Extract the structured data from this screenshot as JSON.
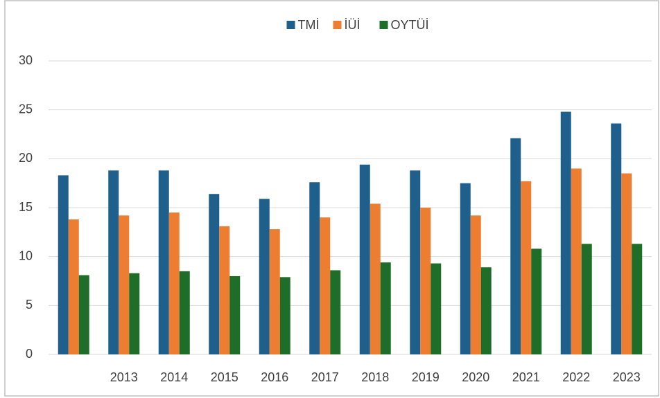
{
  "chart_data": {
    "type": "bar",
    "categories": [
      null,
      "2013",
      "2014",
      "2015",
      "2016",
      "2017",
      "2018",
      "2019",
      "2020",
      "2021",
      "2022",
      "2023"
    ],
    "series": [
      {
        "name": "TMİ",
        "color": "#1f5f8b",
        "values": [
          18.3,
          18.8,
          18.8,
          16.4,
          15.9,
          17.6,
          19.4,
          18.8,
          17.5,
          22.1,
          24.8,
          23.6
        ]
      },
      {
        "name": "İÜİ",
        "color": "#ed7d31",
        "values": [
          13.8,
          14.2,
          14.5,
          13.1,
          12.8,
          14.0,
          15.4,
          15.0,
          14.2,
          17.7,
          19.0,
          18.5
        ]
      },
      {
        "name": "OYTÜİ",
        "color": "#1e6e2a",
        "values": [
          8.1,
          8.3,
          8.5,
          8.0,
          7.9,
          8.6,
          9.4,
          9.3,
          8.9,
          10.8,
          11.3,
          11.3
        ]
      }
    ],
    "ylim": [
      0,
      30
    ],
    "yticks": [
      0,
      5,
      10,
      15,
      20,
      25,
      30
    ],
    "grid": true,
    "legend": "top"
  }
}
